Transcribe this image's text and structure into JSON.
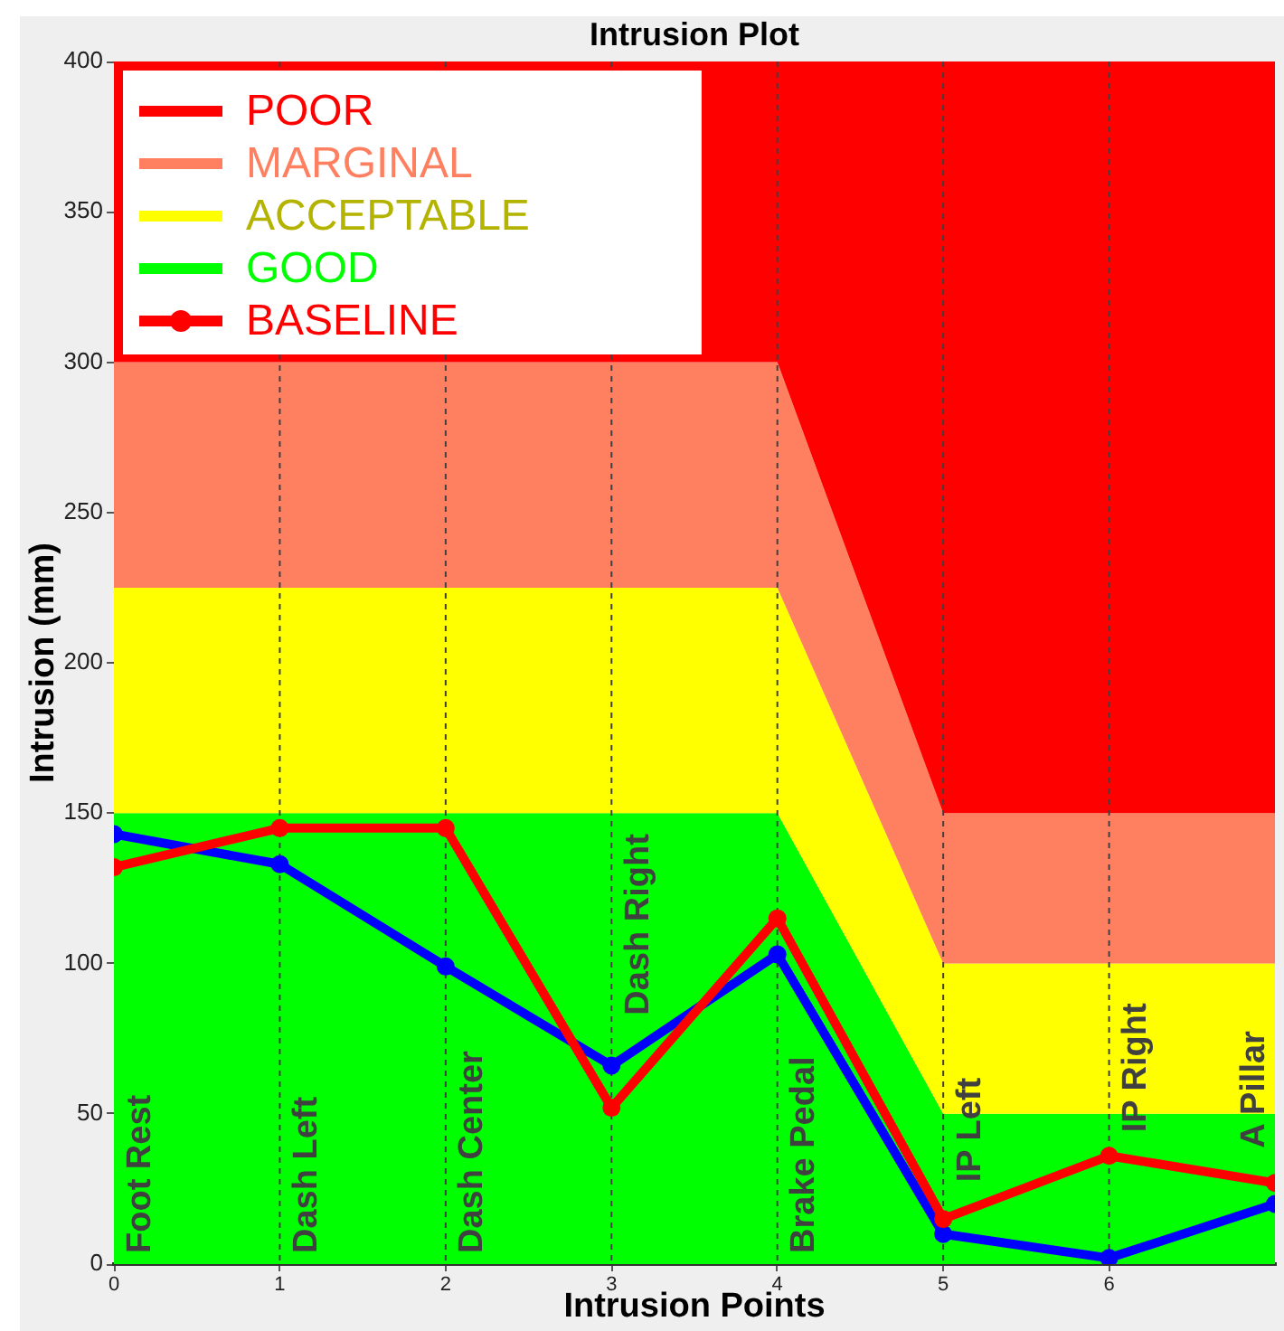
{
  "chart_data": {
    "type": "line",
    "title": "Intrusion Plot",
    "xlabel": "Intrusion Points",
    "ylabel": "Intrusion (mm)",
    "x": [
      0,
      1,
      2,
      3,
      4,
      5,
      6,
      7
    ],
    "series": [
      {
        "name": "GOOD",
        "type": "area",
        "color": "#00ff00",
        "values": [
          150,
          150,
          150,
          150,
          150,
          50,
          50,
          50
        ]
      },
      {
        "name": "ACCEPTABLE",
        "type": "area",
        "color": "#ffff00",
        "values": [
          75,
          75,
          75,
          75,
          75,
          50,
          50,
          50
        ]
      },
      {
        "name": "MARGINAL",
        "type": "area",
        "color": "#ff8060",
        "values": [
          75,
          75,
          75,
          75,
          75,
          50,
          50,
          50
        ]
      },
      {
        "name": "POOR",
        "type": "area",
        "color": "#ff0000",
        "values": [
          100,
          100,
          100,
          100,
          100,
          250,
          250,
          250
        ]
      },
      {
        "name": "BASELINE",
        "color": "#ff0000",
        "marker": "circle",
        "values": [
          132,
          145,
          145,
          52,
          115,
          15,
          36,
          27
        ]
      },
      {
        "color": "#0000ff",
        "marker": "circle",
        "values": [
          143,
          133,
          99,
          66,
          103,
          10,
          2,
          20
        ]
      }
    ],
    "stacked": true,
    "xlim": [
      0,
      7
    ],
    "xticks": [
      0,
      1,
      2,
      3,
      4,
      5,
      6
    ],
    "ylim": [
      0,
      400
    ],
    "yticks": [
      0,
      50,
      100,
      150,
      200,
      250,
      300,
      350,
      400
    ],
    "ref_lines": [
      {
        "axis": "x",
        "value": 1,
        "label": "Dash Left",
        "line_style": "dashed"
      },
      {
        "axis": "x",
        "value": 2,
        "label": "Dash Center",
        "line_style": "dashed"
      },
      {
        "axis": "x",
        "value": 3,
        "label": "Dash Right",
        "line_style": "dashed"
      },
      {
        "axis": "x",
        "value": 4,
        "label": "Brake Pedal",
        "line_style": "dashed"
      },
      {
        "axis": "x",
        "value": 5,
        "label": "IP Left",
        "line_style": "dashed"
      },
      {
        "axis": "x",
        "value": 6,
        "label": "IP Right",
        "line_style": "dashed"
      }
    ],
    "annotations": [
      {
        "text": "Foot Rest",
        "x": 0,
        "y": 0
      },
      {
        "text": "A Pillar",
        "x": 7,
        "y": 35
      }
    ],
    "legend": "top left"
  }
}
